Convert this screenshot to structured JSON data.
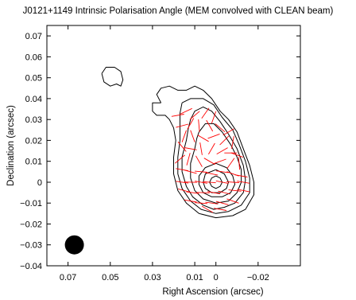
{
  "chart_data": {
    "type": "contour",
    "title": "J0121+1149 Intrinsic Polarisation Angle (MEM convolved with CLEAN beam)",
    "xlabel": "Right Ascension (arcsec)",
    "ylabel": "Declination (arcsec)",
    "xlim": [
      0.08,
      -0.04
    ],
    "ylim": [
      -0.04,
      0.075
    ],
    "x_tick_values": [
      0.07,
      0.05,
      0.03,
      0.01,
      0,
      -0.02
    ],
    "x_tick_labels": [
      "0.07",
      "0.05",
      "0.03",
      "0.01",
      "0",
      "−0.02"
    ],
    "y_tick_values": [
      0.07,
      0.06,
      0.05,
      0.04,
      0.03,
      0.02,
      0.01,
      0,
      -0.01,
      -0.02,
      -0.03,
      -0.04
    ],
    "y_tick_labels": [
      "0.07",
      "0.06",
      "0.05",
      "0.04",
      "0.03",
      "0.02",
      "0.01",
      "0",
      "−0.01",
      "−0.02",
      "−0.03",
      "−0.04"
    ],
    "beam": {
      "x": 0.067,
      "y": -0.03,
      "diameter": 0.009
    },
    "core": {
      "x": 0.0,
      "y": 0.0
    },
    "colors": {
      "contour": "#000000",
      "vector": "#ff0000",
      "beam": "#000000"
    },
    "contours": [
      {
        "level": 1,
        "points": [
          [
            0.026,
            0.038
          ],
          [
            0.028,
            0.042
          ],
          [
            0.026,
            0.045
          ],
          [
            0.022,
            0.046
          ],
          [
            0.018,
            0.044
          ],
          [
            0.014,
            0.044
          ],
          [
            0.01,
            0.046
          ],
          [
            0.006,
            0.044
          ],
          [
            0.002,
            0.04
          ],
          [
            -0.002,
            0.034
          ],
          [
            -0.006,
            0.03
          ],
          [
            -0.01,
            0.024
          ],
          [
            -0.013,
            0.016
          ],
          [
            -0.016,
            0.008
          ],
          [
            -0.018,
            0.0
          ],
          [
            -0.018,
            -0.006
          ],
          [
            -0.014,
            -0.013
          ],
          [
            -0.008,
            -0.016
          ],
          [
            0.0,
            -0.017
          ],
          [
            0.008,
            -0.015
          ],
          [
            0.014,
            -0.01
          ],
          [
            0.018,
            -0.004
          ],
          [
            0.02,
            0.004
          ],
          [
            0.02,
            0.012
          ],
          [
            0.019,
            0.02
          ],
          [
            0.02,
            0.026
          ],
          [
            0.022,
            0.03
          ],
          [
            0.024,
            0.032
          ],
          [
            0.028,
            0.032
          ],
          [
            0.03,
            0.034
          ],
          [
            0.03,
            0.038
          ],
          [
            0.026,
            0.038
          ]
        ]
      },
      {
        "level": 2,
        "points": [
          [
            0.016,
            0.038
          ],
          [
            0.012,
            0.04
          ],
          [
            0.006,
            0.04
          ],
          [
            0.001,
            0.037
          ],
          [
            -0.003,
            0.031
          ],
          [
            -0.008,
            0.025
          ],
          [
            -0.011,
            0.018
          ],
          [
            -0.014,
            0.01
          ],
          [
            -0.016,
            0.002
          ],
          [
            -0.016,
            -0.005
          ],
          [
            -0.012,
            -0.011
          ],
          [
            -0.006,
            -0.014
          ],
          [
            0.0,
            -0.015
          ],
          [
            0.007,
            -0.013
          ],
          [
            0.012,
            -0.009
          ],
          [
            0.016,
            -0.003
          ],
          [
            0.018,
            0.004
          ],
          [
            0.018,
            0.012
          ],
          [
            0.017,
            0.02
          ],
          [
            0.017,
            0.027
          ],
          [
            0.017,
            0.033
          ],
          [
            0.016,
            0.038
          ]
        ]
      },
      {
        "level": 3,
        "points": [
          [
            0.012,
            0.03
          ],
          [
            0.01,
            0.034
          ],
          [
            0.006,
            0.036
          ],
          [
            0.002,
            0.034
          ],
          [
            -0.002,
            0.029
          ],
          [
            -0.006,
            0.023
          ],
          [
            -0.01,
            0.016
          ],
          [
            -0.013,
            0.008
          ],
          [
            -0.014,
            0.001
          ],
          [
            -0.013,
            -0.005
          ],
          [
            -0.009,
            -0.01
          ],
          [
            -0.004,
            -0.012
          ],
          [
            0.001,
            -0.013
          ],
          [
            0.006,
            -0.011
          ],
          [
            0.011,
            -0.007
          ],
          [
            0.014,
            -0.002
          ],
          [
            0.016,
            0.005
          ],
          [
            0.016,
            0.012
          ],
          [
            0.014,
            0.02
          ],
          [
            0.013,
            0.026
          ],
          [
            0.012,
            0.03
          ]
        ]
      },
      {
        "level": 4,
        "points": [
          [
            0.008,
            0.024
          ],
          [
            0.005,
            0.028
          ],
          [
            0.001,
            0.028
          ],
          [
            -0.003,
            0.024
          ],
          [
            -0.007,
            0.018
          ],
          [
            -0.01,
            0.012
          ],
          [
            -0.012,
            0.006
          ],
          [
            -0.012,
            0.0
          ],
          [
            -0.01,
            -0.005
          ],
          [
            -0.006,
            -0.009
          ],
          [
            0.0,
            -0.01
          ],
          [
            0.006,
            -0.008
          ],
          [
            0.01,
            -0.004
          ],
          [
            0.012,
            0.002
          ],
          [
            0.012,
            0.009
          ],
          [
            0.01,
            0.016
          ],
          [
            0.009,
            0.021
          ],
          [
            0.008,
            0.024
          ]
        ]
      },
      {
        "level": 5,
        "points": [
          [
            0.0,
            0.009
          ],
          [
            -0.005,
            0.007
          ],
          [
            -0.008,
            0.003
          ],
          [
            -0.009,
            -0.001
          ],
          [
            -0.007,
            -0.005
          ],
          [
            -0.003,
            -0.007
          ],
          [
            0.002,
            -0.007
          ],
          [
            0.006,
            -0.005
          ],
          [
            0.008,
            -0.001
          ],
          [
            0.008,
            0.003
          ],
          [
            0.005,
            0.007
          ],
          [
            0.0,
            0.009
          ]
        ]
      },
      {
        "level": 6,
        "points": [
          [
            0.0,
            0.006
          ],
          [
            -0.004,
            0.004
          ],
          [
            -0.006,
            0.0
          ],
          [
            -0.005,
            -0.003
          ],
          [
            -0.002,
            -0.005
          ],
          [
            0.002,
            -0.005
          ],
          [
            0.005,
            -0.003
          ],
          [
            0.006,
            0.0
          ],
          [
            0.005,
            0.004
          ],
          [
            0.0,
            0.006
          ]
        ]
      },
      {
        "level": 7,
        "points": [
          [
            0.0,
            0.003
          ],
          [
            -0.002,
            0.002
          ],
          [
            -0.003,
            0.0
          ],
          [
            -0.002,
            -0.002
          ],
          [
            0.0,
            -0.003
          ],
          [
            0.002,
            -0.002
          ],
          [
            0.003,
            0.0
          ],
          [
            0.002,
            0.002
          ],
          [
            0.0,
            0.003
          ]
        ]
      },
      {
        "level": 1,
        "points": [
          [
            0.054,
            0.052
          ],
          [
            0.052,
            0.055
          ],
          [
            0.048,
            0.055
          ],
          [
            0.045,
            0.053
          ],
          [
            0.044,
            0.049
          ],
          [
            0.045,
            0.046
          ],
          [
            0.047,
            0.047
          ],
          [
            0.05,
            0.046
          ],
          [
            0.053,
            0.048
          ],
          [
            0.054,
            0.052
          ]
        ]
      }
    ],
    "vectors": [
      [
        0.018,
        0.032,
        10
      ],
      [
        0.014,
        0.034,
        25
      ],
      [
        0.01,
        0.032,
        40
      ],
      [
        0.005,
        0.033,
        55
      ],
      [
        0.001,
        0.031,
        70
      ],
      [
        0.016,
        0.027,
        15
      ],
      [
        0.012,
        0.028,
        60
      ],
      [
        0.008,
        0.027,
        95
      ],
      [
        0.003,
        0.027,
        120
      ],
      [
        -0.002,
        0.026,
        140
      ],
      [
        -0.006,
        0.024,
        30
      ],
      [
        0.015,
        0.022,
        70
      ],
      [
        0.011,
        0.022,
        110
      ],
      [
        0.006,
        0.021,
        150
      ],
      [
        0.001,
        0.022,
        20
      ],
      [
        -0.004,
        0.02,
        45
      ],
      [
        -0.008,
        0.019,
        80
      ],
      [
        0.016,
        0.017,
        130
      ],
      [
        0.012,
        0.016,
        170
      ],
      [
        0.007,
        0.016,
        100
      ],
      [
        0.002,
        0.016,
        60
      ],
      [
        -0.003,
        0.015,
        30
      ],
      [
        -0.007,
        0.014,
        0
      ],
      [
        -0.01,
        0.013,
        160
      ],
      [
        0.017,
        0.011,
        40
      ],
      [
        0.013,
        0.011,
        75
      ],
      [
        0.008,
        0.01,
        120
      ],
      [
        0.003,
        0.01,
        150
      ],
      [
        -0.002,
        0.01,
        20
      ],
      [
        -0.007,
        0.009,
        55
      ],
      [
        -0.011,
        0.009,
        95
      ],
      [
        0.016,
        0.006,
        170
      ],
      [
        0.012,
        0.005,
        165
      ],
      [
        0.007,
        0.005,
        175
      ],
      [
        0.002,
        0.004,
        168
      ],
      [
        -0.003,
        0.005,
        172
      ],
      [
        -0.008,
        0.004,
        160
      ],
      [
        -0.012,
        0.003,
        170
      ],
      [
        0.016,
        0.0,
        172
      ],
      [
        0.012,
        0.0,
        178
      ],
      [
        0.007,
        0.0,
        170
      ],
      [
        0.003,
        0.0,
        175
      ],
      [
        -0.003,
        0.0,
        168
      ],
      [
        -0.008,
        0.0,
        176
      ],
      [
        -0.013,
        0.0,
        170
      ],
      [
        0.015,
        -0.004,
        165
      ],
      [
        0.011,
        -0.005,
        172
      ],
      [
        0.006,
        -0.005,
        178
      ],
      [
        0.001,
        -0.005,
        170
      ],
      [
        -0.004,
        -0.005,
        166
      ],
      [
        -0.009,
        -0.004,
        174
      ],
      [
        -0.013,
        -0.004,
        168
      ],
      [
        0.012,
        -0.009,
        170
      ],
      [
        0.007,
        -0.01,
        176
      ],
      [
        0.002,
        -0.01,
        172
      ],
      [
        -0.003,
        -0.01,
        165
      ],
      [
        -0.008,
        -0.009,
        160
      ],
      [
        0.004,
        -0.013,
        150
      ],
      [
        -0.002,
        -0.013,
        170
      ]
    ]
  }
}
